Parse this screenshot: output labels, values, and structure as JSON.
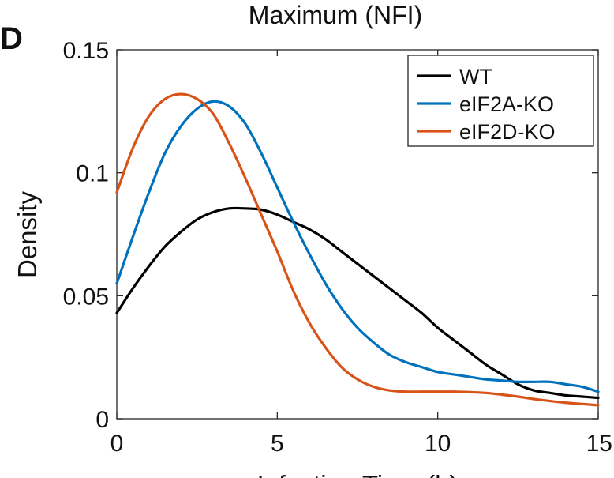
{
  "panel_label": "D",
  "chart_data": {
    "type": "line",
    "title": "Maximum (NFI)",
    "xlabel": "Infection Time (h)",
    "ylabel": "Density",
    "xlim": [
      0,
      15
    ],
    "ylim": [
      0,
      0.15
    ],
    "xticks": [
      0,
      5,
      10,
      15
    ],
    "xtick_labels": [
      "0",
      "5",
      "10",
      "15"
    ],
    "yticks": [
      0,
      0.05,
      0.1,
      0.15
    ],
    "ytick_labels": [
      "0",
      "0.05",
      "0.1",
      "0.15"
    ],
    "grid": false,
    "legend_position": "top-right",
    "x": [
      0,
      0.5,
      1,
      1.5,
      2,
      2.5,
      3,
      3.5,
      4,
      4.5,
      5,
      5.5,
      6,
      6.5,
      7,
      7.5,
      8,
      8.5,
      9,
      9.5,
      10,
      10.5,
      11,
      11.5,
      12,
      12.5,
      13,
      13.5,
      14,
      14.5,
      15
    ],
    "series": [
      {
        "name": "WT",
        "color": "#000000",
        "values": [
          0.043,
          0.053,
          0.062,
          0.07,
          0.076,
          0.081,
          0.084,
          0.0855,
          0.0855,
          0.085,
          0.083,
          0.08,
          0.077,
          0.073,
          0.068,
          0.063,
          0.058,
          0.053,
          0.048,
          0.043,
          0.037,
          0.032,
          0.027,
          0.022,
          0.018,
          0.014,
          0.0115,
          0.0105,
          0.0095,
          0.009,
          0.0085
        ]
      },
      {
        "name": "eIF2A-KO",
        "color": "#0072BD",
        "values": [
          0.055,
          0.074,
          0.092,
          0.108,
          0.119,
          0.126,
          0.129,
          0.127,
          0.12,
          0.108,
          0.094,
          0.08,
          0.067,
          0.055,
          0.045,
          0.037,
          0.031,
          0.026,
          0.023,
          0.021,
          0.019,
          0.018,
          0.017,
          0.016,
          0.0155,
          0.015,
          0.015,
          0.015,
          0.014,
          0.013,
          0.011
        ]
      },
      {
        "name": "eIF2D-KO",
        "color": "#D95319",
        "values": [
          0.092,
          0.11,
          0.123,
          0.13,
          0.132,
          0.13,
          0.124,
          0.112,
          0.098,
          0.083,
          0.068,
          0.052,
          0.039,
          0.029,
          0.021,
          0.016,
          0.013,
          0.0115,
          0.011,
          0.011,
          0.011,
          0.011,
          0.0108,
          0.0105,
          0.0098,
          0.009,
          0.008,
          0.0072,
          0.0065,
          0.006,
          0.0055
        ]
      }
    ]
  }
}
